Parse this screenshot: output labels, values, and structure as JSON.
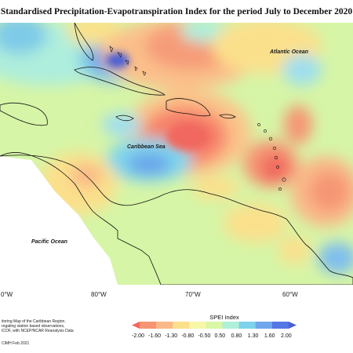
{
  "title": "Standardised Precipitation-Evapotranspiration Index for the period July to December 2020",
  "map": {
    "ocean_labels": {
      "atlantic": "Atlantic Ocean",
      "caribbean": "Caribbean Sea",
      "pacific": "Pacific Ocean"
    },
    "longitude_labels": [
      "0°W",
      "80°W",
      "70°W",
      "60°W"
    ]
  },
  "footnote": {
    "lines": [
      "itoring Map of the Caribbean Region.",
      "regating station based observations,",
      "ICOF, with NCEP/NCAR Reanalysis Data"
    ],
    "credit": "CIMH Feb 2021"
  },
  "legend": {
    "title": "SPEI Index",
    "ticks": [
      "-2.00",
      "-1.60",
      "-1.30",
      "-0.80",
      "-0.50",
      "0.50",
      "0.80",
      "1.30",
      "1.60",
      "2.00"
    ],
    "colors": [
      "#f0685e",
      "#f69573",
      "#fab988",
      "#fbe08c",
      "#f7f7a8",
      "#d9f7a6",
      "#aef0d8",
      "#7ed2ec",
      "#6fa8ec",
      "#5577e6",
      "#4b5ed6"
    ]
  }
}
